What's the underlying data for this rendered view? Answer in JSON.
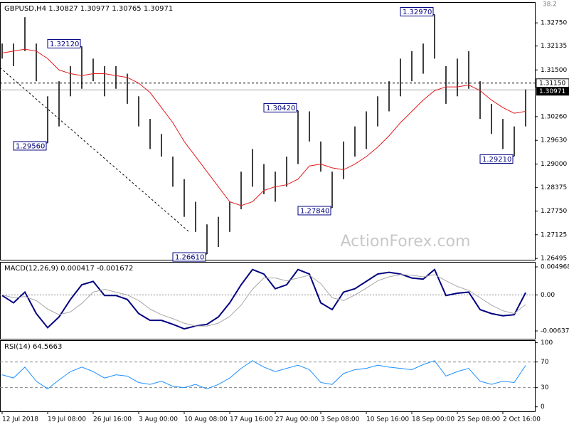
{
  "chart_data": [
    {
      "type": "hilo",
      "title": "GBPUSD,H4  1.30827 1.30977 1.30765 1.30971",
      "categories": [
        "12 Jul 2018",
        null,
        null,
        null,
        "19 Jul 08:00",
        null,
        null,
        null,
        "26 Jul 16:00",
        null,
        null,
        null,
        "3 Aug 00:00",
        null,
        null,
        null,
        "10 Aug 08:00",
        null,
        null,
        null,
        "17 Aug 16:00",
        null,
        null,
        null,
        "27 Aug 00:00",
        null,
        null,
        null,
        "3 Sep 08:00",
        null,
        null,
        null,
        "10 Sep 16:00",
        null,
        null,
        null,
        "18 Sep 00:00",
        null,
        null,
        null,
        "25 Sep 08:00",
        null,
        null,
        null,
        "2 Oct 16:00",
        null,
        null
      ],
      "high": [
        1.322,
        1.322,
        1.329,
        1.322,
        1.308,
        1.312,
        1.316,
        1.3212,
        1.318,
        1.316,
        1.316,
        1.314,
        1.308,
        1.302,
        1.298,
        1.292,
        1.286,
        1.28,
        1.274,
        1.276,
        1.28,
        1.288,
        1.294,
        1.29,
        1.288,
        1.292,
        1.3042,
        1.304,
        1.296,
        1.288,
        1.296,
        1.3,
        1.304,
        1.308,
        1.312,
        1.318,
        1.32,
        1.322,
        1.3297,
        1.316,
        1.318,
        1.32,
        1.312,
        1.306,
        1.302,
        1.3,
        1.3098
      ],
      "low": [
        1.318,
        1.316,
        1.32,
        1.312,
        1.2956,
        1.3,
        1.308,
        1.31,
        1.312,
        1.308,
        1.31,
        1.306,
        1.3,
        1.294,
        1.292,
        1.284,
        1.276,
        1.272,
        1.2661,
        1.268,
        1.272,
        1.278,
        1.284,
        1.282,
        1.28,
        1.284,
        1.29,
        1.296,
        1.288,
        1.2784,
        1.286,
        1.292,
        1.294,
        1.3,
        1.304,
        1.308,
        1.312,
        1.314,
        1.318,
        1.306,
        1.308,
        1.31,
        1.302,
        1.298,
        1.294,
        1.2921,
        1.3
      ],
      "series": [
        {
          "color": "#e31a1c",
          "values": [
            1.3195,
            1.32,
            1.3205,
            1.32,
            1.318,
            1.315,
            1.314,
            1.3135,
            1.314,
            1.314,
            1.3135,
            1.313,
            1.3115,
            1.309,
            1.305,
            1.301,
            1.296,
            1.292,
            1.288,
            1.284,
            1.28,
            1.279,
            1.28,
            1.283,
            1.284,
            1.2845,
            1.286,
            1.2895,
            1.29,
            1.289,
            1.2885,
            1.29,
            1.292,
            1.2945,
            1.2975,
            1.301,
            1.304,
            1.307,
            1.3095,
            1.3105,
            1.3105,
            1.311,
            1.3095,
            1.307,
            1.305,
            1.3035,
            1.304
          ]
        }
      ],
      "bar_color": "#000000",
      "annotations": [
        {
          "value": 1.3212,
          "label": "1.32120"
        },
        {
          "value": 1.2956,
          "label": "1.29560"
        },
        {
          "value": 1.3042,
          "label": "1.30420"
        },
        {
          "value": 1.2784,
          "label": "1.27840"
        },
        {
          "value": 1.2661,
          "label": "1.26610"
        },
        {
          "value": 1.3297,
          "label": "1.32970"
        },
        {
          "value": 1.2921,
          "label": "1.29210"
        }
      ],
      "level": {
        "value": 1.3115,
        "label": "1.31150"
      },
      "current": {
        "value": 1.30971,
        "label": "1.30971"
      },
      "fib_label": "38.2",
      "watermark": "ActionForex.com",
      "ylim": [
        1.2646,
        1.333
      ],
      "yticks": [
        {
          "value": 1.3275,
          "label": "1.32750"
        },
        {
          "value": 1.32135,
          "label": "1.32135"
        },
        {
          "value": 1.315,
          "label": "1.31500"
        },
        {
          "value": 1.3026,
          "label": "1.30260"
        },
        {
          "value": 1.2963,
          "label": "1.29630"
        },
        {
          "value": 1.29,
          "label": "1.29000"
        },
        {
          "value": 1.28375,
          "label": "1.28375"
        },
        {
          "value": 1.2775,
          "label": "1.27750"
        },
        {
          "value": 1.27125,
          "label": "1.27125"
        },
        {
          "value": 1.26495,
          "label": "1.26495"
        }
      ]
    },
    {
      "type": "line",
      "title": "MACD(12,26,9) 0.000417 -0.001672",
      "series": [
        {
          "color": "#000080",
          "values": [
            -0.0001,
            -0.0014,
            0.0005,
            -0.0033,
            -0.0058,
            -0.0039,
            -0.0008,
            0.0018,
            0.0024,
            -0.0001,
            -0.0001,
            -0.0008,
            -0.0033,
            -0.0045,
            -0.0045,
            -0.0052,
            -0.006,
            -0.0055,
            -0.0052,
            -0.0039,
            -0.0014,
            0.0018,
            0.0045,
            0.0037,
            0.0011,
            0.0018,
            0.0045,
            0.0037,
            -0.0014,
            -0.0026,
            0.0005,
            0.0011,
            0.0024,
            0.0037,
            0.004,
            0.0037,
            0.003,
            0.0028,
            0.0045,
            -0.0001,
            0.0003,
            0.0005,
            -0.0026,
            -0.0033,
            -0.0037,
            -0.0035,
            0.0004
          ]
        },
        {
          "color": "#a8a8a8",
          "values": [
            0,
            -0.0005,
            -0.0003,
            -0.001,
            -0.0025,
            -0.0035,
            -0.003,
            -0.0015,
            0.0005,
            0.001,
            0.0005,
            0,
            -0.001,
            -0.0025,
            -0.0035,
            -0.0042,
            -0.005,
            -0.0055,
            -0.0055,
            -0.005,
            -0.0038,
            -0.0018,
            0.001,
            0.003,
            0.003,
            0.0025,
            0.003,
            0.0035,
            0.002,
            -0.0005,
            -0.001,
            0,
            0.0012,
            0.0025,
            0.0032,
            0.0036,
            0.0035,
            0.0032,
            0.0036,
            0.0025,
            0.0015,
            0.0008,
            -0.0005,
            -0.0018,
            -0.0028,
            -0.0033,
            -0.0017
          ]
        }
      ],
      "ylim": [
        -0.00776,
        0.00585
      ],
      "yticks": [
        0.004968,
        {
          "value": 0,
          "label": "0.00"
        },
        -0.006372
      ]
    },
    {
      "type": "line",
      "title": "RSI(14) 64.5663",
      "series": [
        {
          "color": "#1e90ff",
          "values": [
            50,
            45,
            62,
            40,
            28,
            42,
            55,
            62,
            55,
            45,
            50,
            48,
            38,
            35,
            40,
            32,
            30,
            35,
            28,
            35,
            45,
            60,
            72,
            62,
            55,
            60,
            65,
            58,
            38,
            35,
            52,
            58,
            60,
            65,
            62,
            60,
            58,
            66,
            72,
            48,
            55,
            60,
            40,
            35,
            40,
            38,
            64.5663
          ]
        }
      ],
      "ylim": [
        -7,
        104
      ],
      "yticks": [
        100,
        70,
        30,
        0
      ]
    }
  ]
}
